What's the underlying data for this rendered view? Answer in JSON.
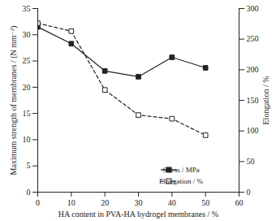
{
  "chart_data": {
    "type": "line",
    "x_label": "HA content in PVA-HA hydrogel membranes / %",
    "y_label": "Maximum strength of membranes / (N mm⁻²)",
    "y2_label": "Elongation / %",
    "x": [
      0,
      10,
      20,
      30,
      40,
      50
    ],
    "series": [
      {
        "name": "Stress / MPa",
        "color": "#222222",
        "marker": "square",
        "line_style": "solid",
        "values": [
          31.5,
          28.3,
          23.1,
          22.0,
          25.7,
          23.7
        ]
      },
      {
        "name": "Elongation / %",
        "color": "#222222",
        "marker": "open_square",
        "line_style": "dashed",
        "axis": "y2",
        "values": [
          276,
          263,
          167,
          126,
          120,
          93
        ]
      }
    ],
    "xlim": [
      0,
      60
    ],
    "xticks": [
      0,
      10,
      20,
      30,
      40,
      50,
      60
    ],
    "ylim": [
      0,
      35
    ],
    "yticks": [
      0,
      5,
      10,
      15,
      20,
      25,
      30,
      35
    ],
    "y2lim": [
      0,
      300
    ],
    "y2ticks": [
      0,
      50,
      100,
      150,
      200,
      250,
      300
    ],
    "legend": "lower right"
  }
}
